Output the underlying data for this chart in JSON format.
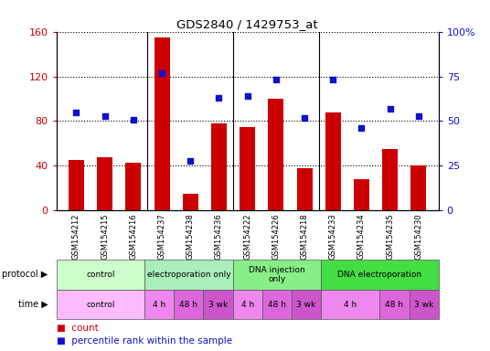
{
  "title": "GDS2840 / 1429753_at",
  "samples": [
    "GSM154212",
    "GSM154215",
    "GSM154216",
    "GSM154237",
    "GSM154238",
    "GSM154236",
    "GSM154222",
    "GSM154226",
    "GSM154218",
    "GSM154233",
    "GSM154234",
    "GSM154235",
    "GSM154230"
  ],
  "counts": [
    45,
    48,
    43,
    155,
    15,
    78,
    75,
    100,
    38,
    88,
    28,
    55,
    40
  ],
  "percentiles": [
    55,
    53,
    51,
    77,
    28,
    63,
    64,
    73,
    52,
    73,
    46,
    57,
    53
  ],
  "ylim_left": [
    0,
    160
  ],
  "ylim_right": [
    0,
    100
  ],
  "yticks_left": [
    0,
    40,
    80,
    120,
    160
  ],
  "yticks_right": [
    0,
    25,
    50,
    75,
    100
  ],
  "ytick_labels_left": [
    "0",
    "40",
    "80",
    "120",
    "160"
  ],
  "ytick_labels_right": [
    "0",
    "25",
    "50",
    "75",
    "100%"
  ],
  "bar_color": "#cc0000",
  "dot_color": "#1111cc",
  "protocol_row": [
    {
      "label": "control",
      "start": 0,
      "end": 3,
      "color": "#ccffcc"
    },
    {
      "label": "electroporation only",
      "start": 3,
      "end": 6,
      "color": "#aaeebb"
    },
    {
      "label": "DNA injection\nonly",
      "start": 6,
      "end": 9,
      "color": "#88ee88"
    },
    {
      "label": "DNA electroporation",
      "start": 9,
      "end": 13,
      "color": "#44dd44"
    }
  ],
  "time_row": [
    {
      "label": "control",
      "start": 0,
      "end": 3,
      "color": "#ffbbff"
    },
    {
      "label": "4 h",
      "start": 3,
      "end": 4,
      "color": "#ee88ee"
    },
    {
      "label": "48 h",
      "start": 4,
      "end": 5,
      "color": "#dd66dd"
    },
    {
      "label": "3 wk",
      "start": 5,
      "end": 6,
      "color": "#cc55cc"
    },
    {
      "label": "4 h",
      "start": 6,
      "end": 7,
      "color": "#ee88ee"
    },
    {
      "label": "48 h",
      "start": 7,
      "end": 8,
      "color": "#dd66dd"
    },
    {
      "label": "3 wk",
      "start": 8,
      "end": 9,
      "color": "#cc55cc"
    },
    {
      "label": "4 h",
      "start": 9,
      "end": 11,
      "color": "#ee88ee"
    },
    {
      "label": "48 h",
      "start": 11,
      "end": 12,
      "color": "#dd66dd"
    },
    {
      "label": "3 wk",
      "start": 12,
      "end": 13,
      "color": "#cc55cc"
    }
  ],
  "legend_count_label": "count",
  "legend_pct_label": "percentile rank within the sample"
}
